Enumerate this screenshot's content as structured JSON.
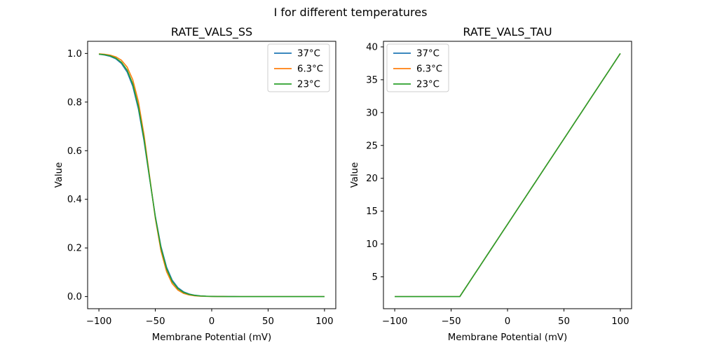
{
  "figure": {
    "suptitle": "I for different temperatures",
    "background": "#ffffff",
    "text_color": "#000000",
    "spine_color": "#000000",
    "legend_border_color": "#cccccc"
  },
  "chart_data": [
    {
      "type": "line",
      "title": "RATE_VALS_SS",
      "xlabel": "Membrane Potential (mV)",
      "ylabel": "Value",
      "xlim": [
        -110,
        110
      ],
      "ylim": [
        -0.05,
        1.05
      ],
      "grid": false,
      "legend_position": "upper-right",
      "xticks": [
        -100,
        -50,
        0,
        50,
        100
      ],
      "xtick_labels": [
        "−100",
        "−50",
        "0",
        "50",
        "100"
      ],
      "yticks": [
        0.0,
        0.2,
        0.4,
        0.6,
        0.8,
        1.0
      ],
      "ytick_labels": [
        "0.0",
        "0.2",
        "0.4",
        "0.6",
        "0.8",
        "1.0"
      ],
      "x": [
        -100,
        -95,
        -90,
        -85,
        -80,
        -75,
        -70,
        -65,
        -60,
        -55,
        -50,
        -45,
        -40,
        -35,
        -30,
        -25,
        -20,
        -15,
        -10,
        -5,
        0,
        5,
        10,
        15,
        20,
        25,
        30,
        35,
        40,
        45,
        50,
        55,
        60,
        65,
        70,
        75,
        80,
        85,
        90,
        95,
        100
      ],
      "series": [
        {
          "name": "37°C",
          "color": "#1f77b4",
          "values": [
            0.9967,
            0.9937,
            0.9881,
            0.9778,
            0.9585,
            0.924,
            0.865,
            0.7717,
            0.6404,
            0.484,
            0.3307,
            0.2064,
            0.1207,
            0.0673,
            0.0367,
            0.0196,
            0.0104,
            0.0055,
            0.0029,
            0.0015,
            0.0008,
            0.0004,
            0.0002,
            0.0001,
            0.0001,
            0,
            0,
            0,
            0,
            0,
            0,
            0,
            0,
            0,
            0,
            0,
            0,
            0,
            0,
            0,
            0
          ]
        },
        {
          "name": "6.3°C",
          "color": "#ff7f0e",
          "values": [
            0.9983,
            0.9966,
            0.9931,
            0.986,
            0.972,
            0.9443,
            0.8922,
            0.8022,
            0.665,
            0.4929,
            0.3224,
            0.1887,
            0.1024,
            0.0529,
            0.0266,
            0.0132,
            0.0065,
            0.0032,
            0.0016,
            0.0008,
            0.0004,
            0.0002,
            0.0001,
            0,
            0,
            0,
            0,
            0,
            0,
            0,
            0,
            0,
            0,
            0,
            0,
            0,
            0,
            0,
            0,
            0,
            0
          ]
        },
        {
          "name": "23°C",
          "color": "#2ca02c",
          "values": [
            0.9974,
            0.9949,
            0.9902,
            0.981,
            0.9637,
            0.9317,
            0.8751,
            0.7824,
            0.6486,
            0.4867,
            0.3274,
            0.2,
            0.1137,
            0.0617,
            0.0327,
            0.0171,
            0.0088,
            0.0046,
            0.0023,
            0.0012,
            0.0006,
            0.0003,
            0.0001,
            0,
            0,
            0,
            0,
            0,
            0,
            0,
            0,
            0,
            0,
            0,
            0,
            0,
            0,
            0,
            0,
            0,
            0
          ]
        }
      ]
    },
    {
      "type": "line",
      "title": "RATE_VALS_TAU",
      "xlabel": "Membrane Potential (mV)",
      "ylabel": "Value",
      "xlim": [
        -110,
        110
      ],
      "ylim": [
        0.15,
        40.85
      ],
      "grid": false,
      "legend_position": "upper-left",
      "xticks": [
        -100,
        -50,
        0,
        50,
        100
      ],
      "xtick_labels": [
        "−100",
        "−50",
        "0",
        "50",
        "100"
      ],
      "yticks": [
        5,
        10,
        15,
        20,
        25,
        30,
        35,
        40
      ],
      "ytick_labels": [
        "5",
        "10",
        "15",
        "20",
        "25",
        "30",
        "35",
        "40"
      ],
      "x": [
        -100,
        -95,
        -90,
        -85,
        -80,
        -75,
        -70,
        -65,
        -60,
        -55,
        -50,
        -45,
        -42.3,
        -40,
        -35,
        -30,
        -25,
        -20,
        -15,
        -10,
        -5,
        0,
        5,
        10,
        15,
        20,
        25,
        30,
        35,
        40,
        45,
        50,
        55,
        60,
        65,
        70,
        75,
        80,
        85,
        90,
        95,
        100
      ],
      "series": [
        {
          "name": "37°C",
          "color": "#1f77b4",
          "values": [
            2,
            2,
            2,
            2,
            2,
            2,
            2,
            2,
            2,
            2,
            2,
            2,
            2,
            2.6,
            3.9,
            5.2,
            6.5,
            7.8,
            9.1,
            10.4,
            11.7,
            13,
            14.3,
            15.6,
            16.9,
            18.2,
            19.5,
            20.8,
            22.1,
            23.4,
            24.7,
            26,
            27.3,
            28.6,
            29.9,
            31.2,
            32.5,
            33.8,
            35.1,
            36.4,
            37.7,
            39
          ]
        },
        {
          "name": "6.3°C",
          "color": "#ff7f0e",
          "values": [
            2,
            2,
            2,
            2,
            2,
            2,
            2,
            2,
            2,
            2,
            2,
            2,
            2,
            2.6,
            3.9,
            5.2,
            6.5,
            7.8,
            9.1,
            10.4,
            11.7,
            13,
            14.3,
            15.6,
            16.9,
            18.2,
            19.5,
            20.8,
            22.1,
            23.4,
            24.7,
            26,
            27.3,
            28.6,
            29.9,
            31.2,
            32.5,
            33.8,
            35.1,
            36.4,
            37.7,
            39
          ]
        },
        {
          "name": "23°C",
          "color": "#2ca02c",
          "values": [
            2,
            2,
            2,
            2,
            2,
            2,
            2,
            2,
            2,
            2,
            2,
            2,
            2,
            2.6,
            3.9,
            5.2,
            6.5,
            7.8,
            9.1,
            10.4,
            11.7,
            13,
            14.3,
            15.6,
            16.9,
            18.2,
            19.5,
            20.8,
            22.1,
            23.4,
            24.7,
            26,
            27.3,
            28.6,
            29.9,
            31.2,
            32.5,
            33.8,
            35.1,
            36.4,
            37.7,
            39
          ]
        }
      ]
    }
  ]
}
